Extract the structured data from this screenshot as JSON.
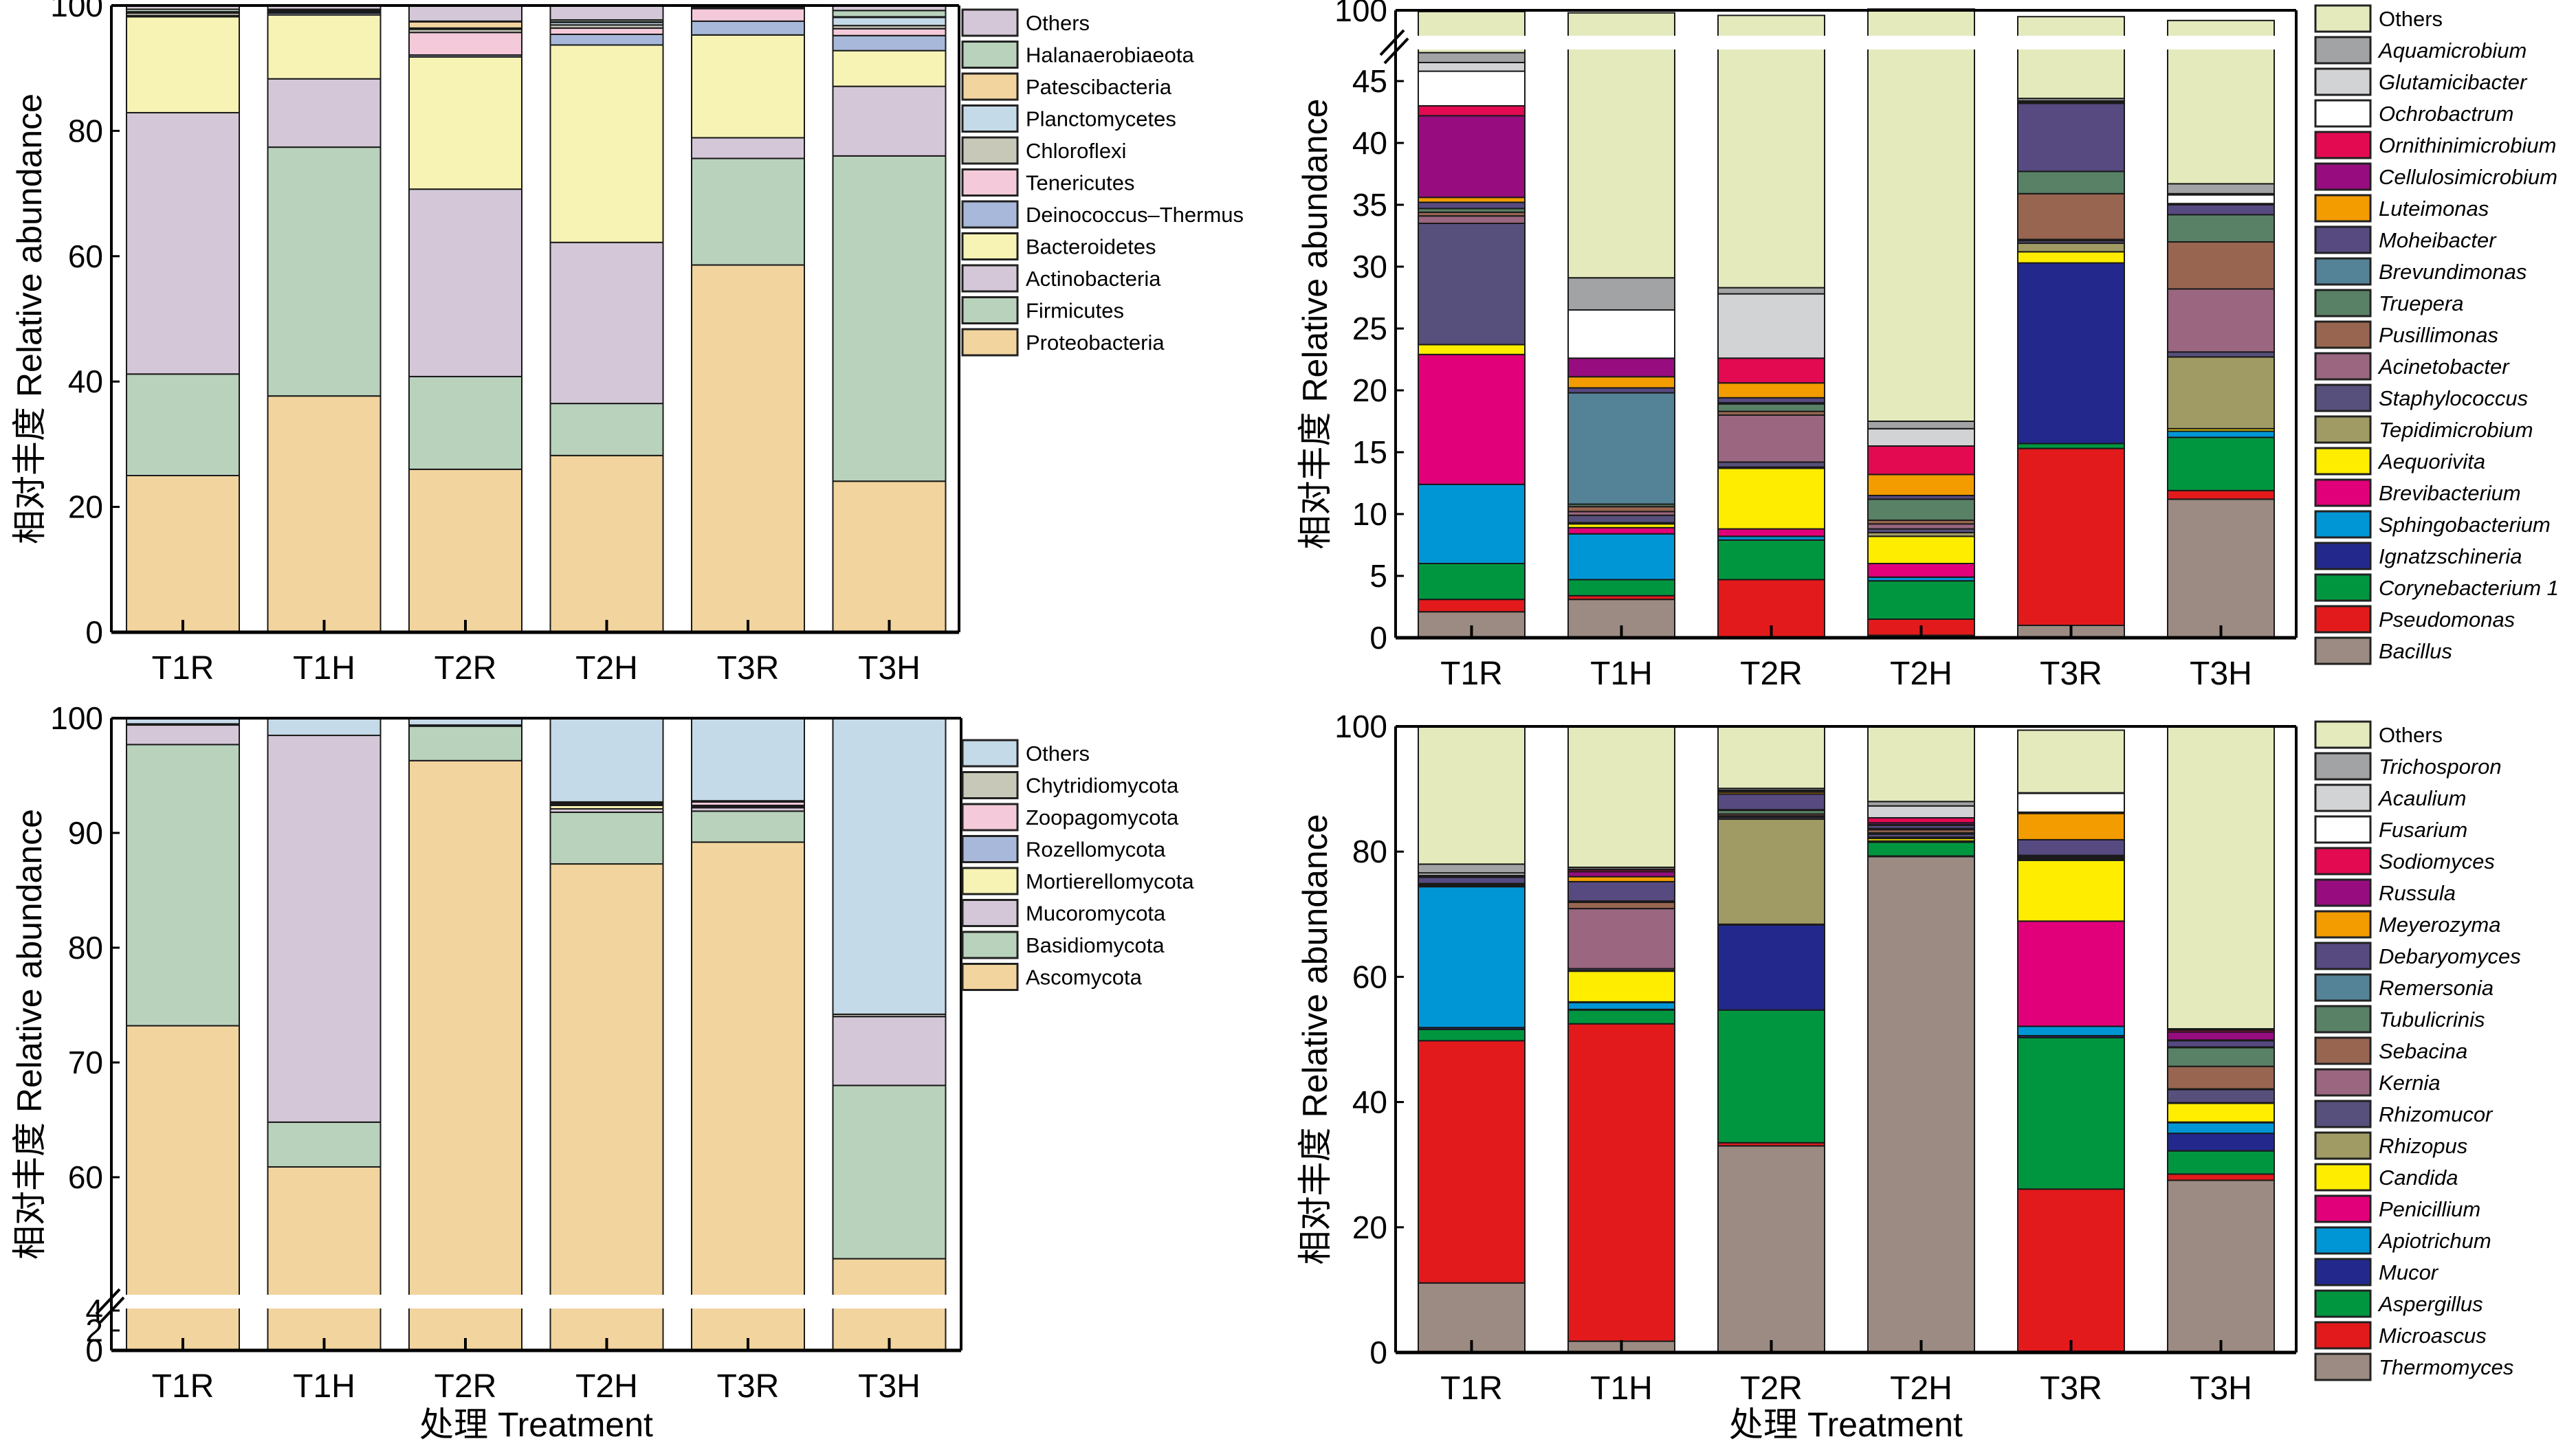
{
  "chart_data": [
    {
      "type": "bar",
      "stacked": true,
      "panel": "top-left",
      "title": "",
      "xlabel": "",
      "ylabel": "相对丰度 Relative abundance",
      "ylim": [
        0,
        100
      ],
      "yticks": [
        "0",
        "20",
        "40",
        "60",
        "80",
        "100"
      ],
      "y_break": null,
      "categories": [
        "T1R",
        "T1H",
        "T2R",
        "T2H",
        "T3R",
        "T3H"
      ],
      "legend_position": "right",
      "legend_italic": false,
      "series": [
        {
          "name": "Proteobacteria",
          "color": "#F2D49E",
          "values": [
            25.0,
            37.7,
            26.0,
            28.2,
            58.6,
            24.1
          ]
        },
        {
          "name": "Firmicutes",
          "color": "#B9D2BC",
          "values": [
            16.2,
            39.7,
            14.8,
            8.3,
            17.0,
            51.9
          ]
        },
        {
          "name": "Actinobacteria",
          "color": "#D4C8D8",
          "values": [
            41.7,
            10.9,
            29.9,
            25.7,
            3.3,
            11.1
          ]
        },
        {
          "name": "Bacteroidetes",
          "color": "#F7F3B5",
          "values": [
            15.3,
            10.2,
            21.1,
            31.5,
            16.4,
            5.7
          ]
        },
        {
          "name": "Deinococcus–Thermus",
          "color": "#A8B8DA",
          "values": [
            0.1,
            0.3,
            0.3,
            1.7,
            2.2,
            2.4
          ]
        },
        {
          "name": "Tenericutes",
          "color": "#F4CADA",
          "values": [
            0.1,
            0.1,
            3.6,
            1.0,
            2.0,
            1.1
          ]
        },
        {
          "name": "Chloroflexi",
          "color": "#C8C8B8",
          "values": [
            0.4,
            0.1,
            0.5,
            0.5,
            0.1,
            0.5
          ]
        },
        {
          "name": "Planctomycetes",
          "color": "#C5DAE8",
          "values": [
            0.1,
            0.1,
            0.2,
            0.4,
            0.1,
            1.3
          ]
        },
        {
          "name": "Patescibacteria",
          "color": "#F2D49E",
          "values": [
            0.1,
            0.1,
            1.0,
            0.1,
            0.1,
            0.1
          ]
        },
        {
          "name": "Halanaerobiaeota",
          "color": "#B9D2BC",
          "values": [
            0.4,
            0.2,
            0.1,
            0.3,
            0.1,
            1.0
          ]
        },
        {
          "name": "Others",
          "color": "#D4C8D8",
          "values": [
            0.6,
            0.6,
            2.5,
            2.3,
            0.0,
            0.8
          ]
        }
      ]
    },
    {
      "type": "bar",
      "stacked": true,
      "panel": "top-right",
      "title": "",
      "xlabel": "",
      "ylabel": "相对丰度 Relative abundance",
      "ylim": [
        0,
        100
      ],
      "yticks": [
        "0",
        "5",
        "10",
        "15",
        "20",
        "25",
        "30",
        "35",
        "40",
        "45",
        "100"
      ],
      "y_break": [
        47.5,
        98
      ],
      "categories": [
        "T1R",
        "T1H",
        "T2R",
        "T2H",
        "T3R",
        "T3H"
      ],
      "legend_position": "right",
      "legend_italic": true,
      "series": [
        {
          "name": "Bacillus",
          "color": "#9C8B82",
          "values": [
            2.1,
            3.1,
            0.0,
            0.2,
            1.0,
            11.2
          ]
        },
        {
          "name": "Pseudomonas",
          "color": "#E31A1C",
          "values": [
            1.0,
            0.3,
            4.7,
            1.3,
            14.3,
            0.7
          ]
        },
        {
          "name": "Corynebacterium 1",
          "color": "#009640",
          "values": [
            2.9,
            1.3,
            3.2,
            3.1,
            0.4,
            4.3
          ]
        },
        {
          "name": "Ignatzschineria",
          "color": "#23298C",
          "values": [
            0.0,
            0.0,
            0.0,
            0.0,
            14.6,
            0.0
          ]
        },
        {
          "name": "Sphingobacterium",
          "color": "#0096D6",
          "values": [
            6.4,
            3.7,
            0.3,
            0.3,
            0.0,
            0.5
          ]
        },
        {
          "name": "Brevibacterium",
          "color": "#E2007A",
          "values": [
            10.5,
            0.5,
            0.6,
            1.1,
            0.0,
            0.0
          ]
        },
        {
          "name": "Aequorivita",
          "color": "#FFED00",
          "values": [
            0.8,
            0.3,
            4.9,
            2.2,
            0.9,
            0.2
          ]
        },
        {
          "name": "Tepidimicrobium",
          "color": "#A09A64",
          "values": [
            0.0,
            0.1,
            0.1,
            0.3,
            0.7,
            5.8
          ]
        },
        {
          "name": "Staphylococcus",
          "color": "#57507C",
          "values": [
            9.8,
            0.6,
            0.4,
            0.3,
            0.2,
            0.4
          ]
        },
        {
          "name": "Acinetobacter",
          "color": "#9A6680",
          "values": [
            0.6,
            0.3,
            3.8,
            0.4,
            0.1,
            5.1
          ]
        },
        {
          "name": "Pusillimonas",
          "color": "#986550",
          "values": [
            0.3,
            0.4,
            0.3,
            0.3,
            3.7,
            3.8
          ]
        },
        {
          "name": "Truepera",
          "color": "#598166",
          "values": [
            0.3,
            0.2,
            0.6,
            1.7,
            1.8,
            2.2
          ]
        },
        {
          "name": "Brevundimonas",
          "color": "#548297",
          "values": [
            0.0,
            9.0,
            0.1,
            0.0,
            0.0,
            0.0
          ]
        },
        {
          "name": "Moheibacter",
          "color": "#574A81",
          "values": [
            0.5,
            0.4,
            0.4,
            0.3,
            5.5,
            0.8
          ]
        },
        {
          "name": "Luteimonas",
          "color": "#F29C00",
          "values": [
            0.4,
            0.9,
            1.2,
            1.7,
            0.0,
            0.0
          ]
        },
        {
          "name": "Cellulosimicrobium",
          "color": "#970D7F",
          "values": [
            6.6,
            1.5,
            0.0,
            0.0,
            0.1,
            0.1
          ]
        },
        {
          "name": "Ornithinimicrobium",
          "color": "#E30A52",
          "values": [
            0.8,
            0.0,
            2.0,
            2.3,
            0.1,
            0.0
          ]
        },
        {
          "name": "Ochrobactrum",
          "color": "#FFFFFF",
          "values": [
            2.8,
            3.9,
            0.0,
            0.0,
            0.0,
            0.7
          ]
        },
        {
          "name": "Glutamicibacter",
          "color": "#D2D3D5",
          "values": [
            0.7,
            0.0,
            5.2,
            1.4,
            0.0,
            0.1
          ]
        },
        {
          "name": "Aquamicrobium",
          "color": "#A2A3A5",
          "values": [
            0.8,
            2.6,
            0.5,
            0.6,
            0.2,
            0.8
          ]
        },
        {
          "name": "Others",
          "color": "#E5EABD",
          "values": [
            52.6,
            70.7,
            71.3,
            82.6,
            55.9,
            62.5
          ]
        }
      ]
    },
    {
      "type": "bar",
      "stacked": true,
      "panel": "bottom-left",
      "title": "",
      "xlabel": "处理 Treatment",
      "ylabel": "相对丰度 Relative abundance",
      "ylim": [
        0,
        100
      ],
      "yticks": [
        "0",
        "2",
        "4",
        "60",
        "70",
        "80",
        "90",
        "100"
      ],
      "y_break": [
        5,
        50
      ],
      "categories": [
        "T1R",
        "T1H",
        "T2R",
        "T2H",
        "T3R",
        "T3H"
      ],
      "legend_position": "right",
      "legend_italic": false,
      "series": [
        {
          "name": "Ascomycota",
          "color": "#F2D49E",
          "values": [
            73.2,
            60.9,
            96.3,
            87.3,
            89.2,
            52.9
          ]
        },
        {
          "name": "Basidiomycota",
          "color": "#B9D2BC",
          "values": [
            24.5,
            3.9,
            3.0,
            4.5,
            2.7,
            15.1
          ]
        },
        {
          "name": "Mucoromycota",
          "color": "#D4C8D8",
          "values": [
            1.7,
            33.7,
            0.1,
            0.3,
            0.3,
            6.0
          ]
        },
        {
          "name": "Mortierellomycota",
          "color": "#F7F3B5",
          "values": [
            0.1,
            0.0,
            0.0,
            0.3,
            0.1,
            0.0
          ]
        },
        {
          "name": "Rozellomycota",
          "color": "#A8B8DA",
          "values": [
            0.0,
            0.0,
            0.0,
            0.1,
            0.1,
            0.0
          ]
        },
        {
          "name": "Zoopagomycota",
          "color": "#F4CADA",
          "values": [
            0.0,
            0.0,
            0.0,
            0.1,
            0.3,
            0.0
          ]
        },
        {
          "name": "Chytridiomycota",
          "color": "#C8C8B8",
          "values": [
            0.0,
            0.0,
            0.0,
            0.1,
            0.1,
            0.2
          ]
        },
        {
          "name": "Others",
          "color": "#C5DAE8",
          "values": [
            0.5,
            1.5,
            0.6,
            7.3,
            7.2,
            25.8
          ]
        }
      ]
    },
    {
      "type": "bar",
      "stacked": true,
      "panel": "bottom-right",
      "title": "",
      "xlabel": "处理 Treatment",
      "ylabel": "相对丰度 Relative abundance",
      "ylim": [
        0,
        100
      ],
      "yticks": [
        "0",
        "20",
        "40",
        "60",
        "80",
        "100"
      ],
      "y_break": null,
      "categories": [
        "T1R",
        "T1H",
        "T2R",
        "T2H",
        "T3R",
        "T3H"
      ],
      "legend_position": "right",
      "legend_italic": true,
      "series": [
        {
          "name": "Thermomyces",
          "color": "#9C8B82",
          "values": [
            11.1,
            1.8,
            33.0,
            79.2,
            0.2,
            27.5
          ]
        },
        {
          "name": "Microascus",
          "color": "#E31A1C",
          "values": [
            38.7,
            50.7,
            0.5,
            0.1,
            25.9,
            1.0
          ]
        },
        {
          "name": "Aspergillus",
          "color": "#009640",
          "values": [
            1.8,
            2.2,
            21.2,
            2.2,
            24.2,
            3.7
          ]
        },
        {
          "name": "Mucor",
          "color": "#23298C",
          "values": [
            0.3,
            0.1,
            13.6,
            0.0,
            0.3,
            2.8
          ]
        },
        {
          "name": "Apiotrichum",
          "color": "#0096D6",
          "values": [
            22.5,
            1.1,
            0.1,
            0.1,
            1.5,
            1.7
          ]
        },
        {
          "name": "Penicillium",
          "color": "#E2007A",
          "values": [
            0.0,
            0.1,
            0.0,
            0.1,
            16.8,
            0.1
          ]
        },
        {
          "name": "Candida",
          "color": "#FFED00",
          "values": [
            0.0,
            4.9,
            0.0,
            0.4,
            9.7,
            3.0
          ]
        },
        {
          "name": "Rhizopus",
          "color": "#A09A64",
          "values": [
            0.0,
            0.1,
            16.8,
            0.2,
            0.1,
            0.1
          ]
        },
        {
          "name": "Rhizomucor",
          "color": "#57507C",
          "values": [
            0.1,
            0.3,
            0.3,
            0.5,
            0.2,
            2.1
          ]
        },
        {
          "name": "Kernia",
          "color": "#9A6680",
          "values": [
            0.1,
            9.6,
            0.2,
            0.2,
            0.2,
            0.1
          ]
        },
        {
          "name": "Sebacina",
          "color": "#986550",
          "values": [
            0.1,
            1.0,
            0.3,
            0.5,
            0.1,
            3.6
          ]
        },
        {
          "name": "Tubulicrinis",
          "color": "#598166",
          "values": [
            0.1,
            0.1,
            0.6,
            0.1,
            0.1,
            3.0
          ]
        },
        {
          "name": "Remersonia",
          "color": "#548297",
          "values": [
            0.1,
            0.1,
            0.1,
            0.1,
            0.1,
            0.1
          ]
        },
        {
          "name": "Debaryomyces",
          "color": "#574A81",
          "values": [
            1.0,
            3.1,
            2.5,
            0.5,
            2.5,
            1.0
          ]
        },
        {
          "name": "Meyerozyma",
          "color": "#F29C00",
          "values": [
            0.1,
            0.8,
            0.3,
            0.1,
            4.2,
            0.1
          ]
        },
        {
          "name": "Russula",
          "color": "#970D7F",
          "values": [
            0.1,
            0.8,
            0.1,
            0.3,
            0.1,
            1.3
          ]
        },
        {
          "name": "Sodiomyces",
          "color": "#E30A52",
          "values": [
            0.1,
            0.3,
            0.1,
            0.8,
            0.1,
            0.3
          ]
        },
        {
          "name": "Fusarium",
          "color": "#FFFFFF",
          "values": [
            0.0,
            0.0,
            0.0,
            0.0,
            3.0,
            0.0
          ]
        },
        {
          "name": "Acaulium",
          "color": "#D2D3D5",
          "values": [
            0.4,
            0.1,
            0.1,
            1.9,
            0.0,
            0.1
          ]
        },
        {
          "name": "Trichosporon",
          "color": "#A2A3A5",
          "values": [
            1.4,
            0.3,
            0.3,
            0.7,
            0.1,
            0.1
          ]
        },
        {
          "name": "Others",
          "color": "#E5EABD",
          "values": [
            22.0,
            22.5,
            10.0,
            12.1,
            10.0,
            48.3
          ]
        }
      ]
    }
  ]
}
